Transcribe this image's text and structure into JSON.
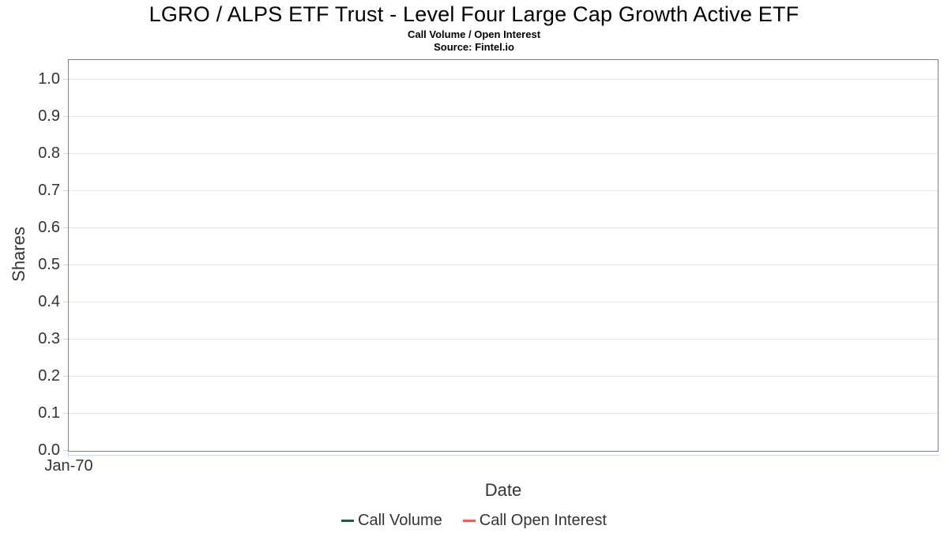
{
  "header": {
    "title": "LGRO / ALPS ETF Trust - Level Four Large Cap Growth Active ETF",
    "subtitle": "Call Volume / Open Interest",
    "source": "Source: Fintel.io"
  },
  "chart_data": {
    "type": "line",
    "title": "LGRO / ALPS ETF Trust - Level Four Large Cap Growth Active ETF",
    "subtitle": "Call Volume / Open Interest",
    "source": "Source: Fintel.io",
    "xlabel": "Date",
    "ylabel": "Shares",
    "x_tick_labels": [
      "Jan-70"
    ],
    "y_tick_labels": [
      "0.0",
      "0.1",
      "0.2",
      "0.3",
      "0.4",
      "0.5",
      "0.6",
      "0.7",
      "0.8",
      "0.9",
      "1.0"
    ],
    "ylim": [
      0.0,
      1.05
    ],
    "grid": true,
    "legend_position": "bottom",
    "series": [
      {
        "name": "Call Volume",
        "color": "#255c43",
        "x": [],
        "values": []
      },
      {
        "name": "Call Open Interest",
        "color": "#fb5858",
        "x": [],
        "values": []
      }
    ],
    "colors": {
      "plot_border": "#808080",
      "gridline": "#e6e6e6",
      "axis_line": "#ccd6eb",
      "text": "#333333"
    }
  }
}
